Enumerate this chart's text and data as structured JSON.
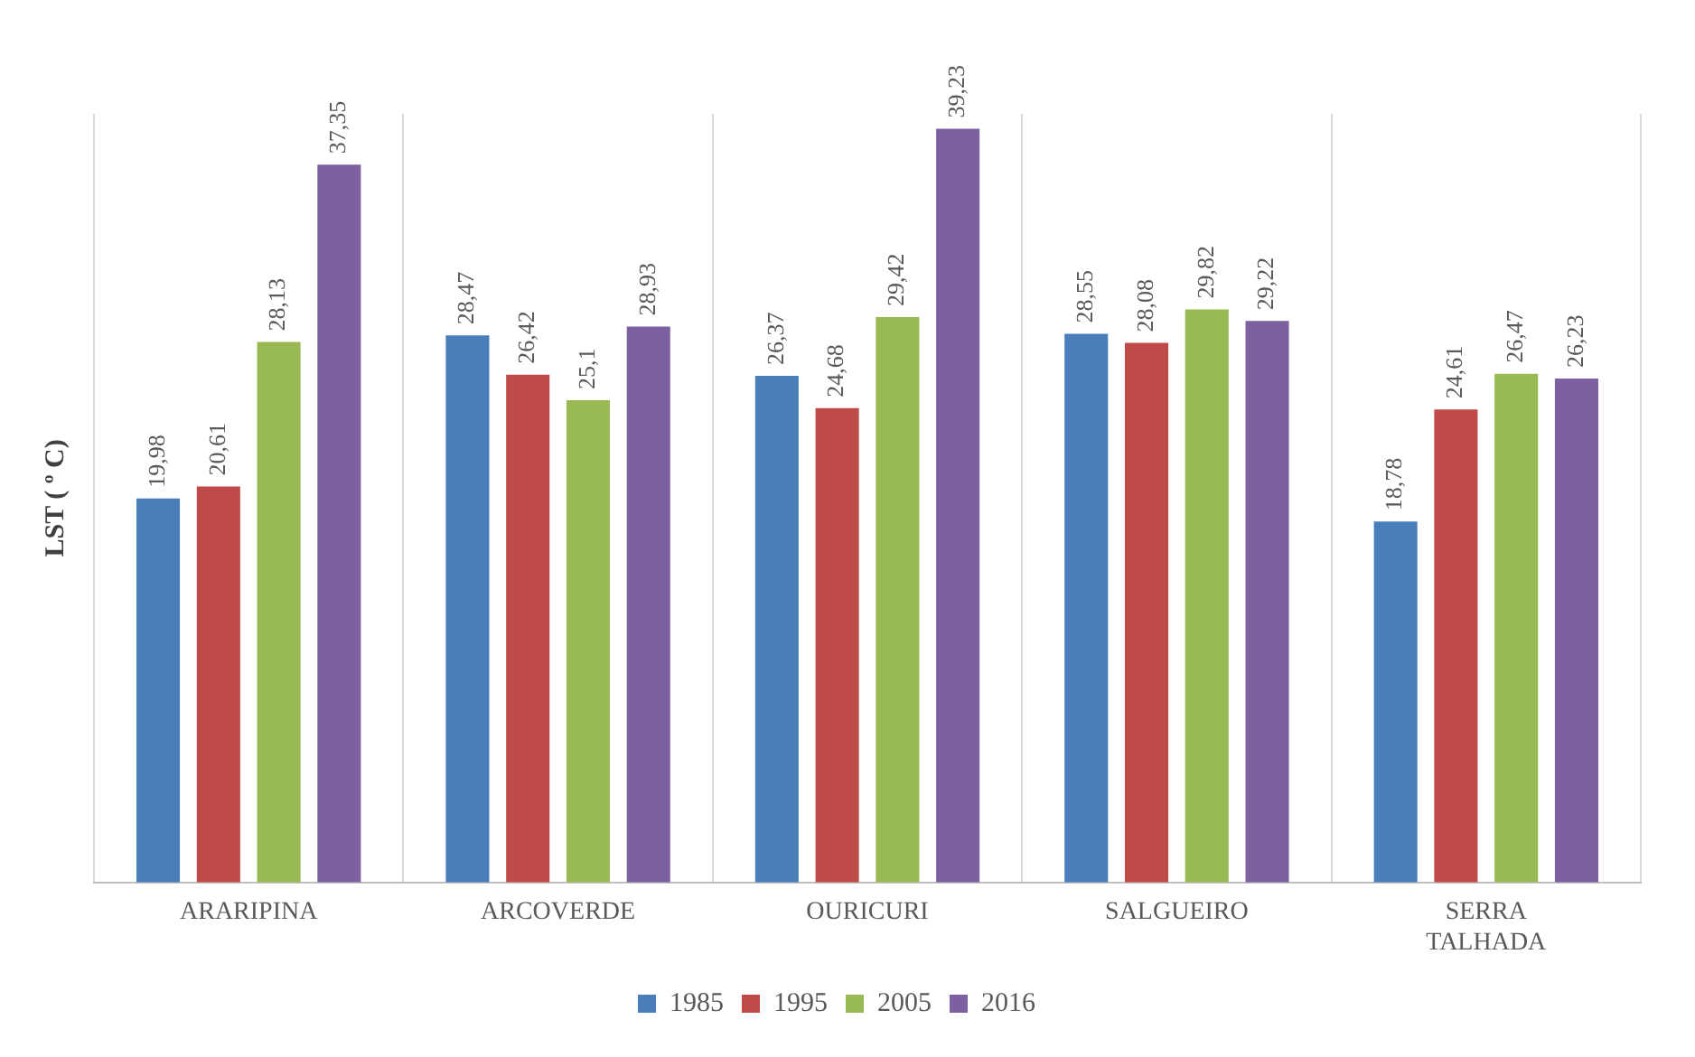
{
  "chart_data": {
    "type": "bar",
    "ylabel": "LST ( º C)",
    "categories": [
      "ARARIPINA",
      "ARCOVERDE",
      "OURICURI",
      "SALGUEIRO",
      "SERRA TALHADA"
    ],
    "series": [
      {
        "name": "1985",
        "color": "#4a7ebb",
        "values": [
          19.98,
          28.47,
          26.37,
          28.55,
          18.78
        ],
        "value_labels": [
          "19,98",
          "28,47",
          "26,37",
          "28,55",
          "18,78"
        ]
      },
      {
        "name": "1995",
        "color": "#be4b48",
        "values": [
          20.61,
          26.42,
          24.68,
          28.08,
          24.61
        ],
        "value_labels": [
          "20,61",
          "26,42",
          "24,68",
          "28,08",
          "24,61"
        ]
      },
      {
        "name": "2005",
        "color": "#98b954",
        "values": [
          28.13,
          25.1,
          29.42,
          29.82,
          26.47
        ],
        "value_labels": [
          "28,13",
          "25,1",
          "29,42",
          "29,82",
          "26,47"
        ]
      },
      {
        "name": "2016",
        "color": "#7d60a0",
        "values": [
          37.35,
          28.93,
          39.23,
          29.22,
          26.23
        ],
        "value_labels": [
          "37,35",
          "28,93",
          "39,23",
          "29,22",
          "26,23"
        ]
      }
    ],
    "grid": "x",
    "legend": "bottom",
    "tick_labels": "x"
  }
}
